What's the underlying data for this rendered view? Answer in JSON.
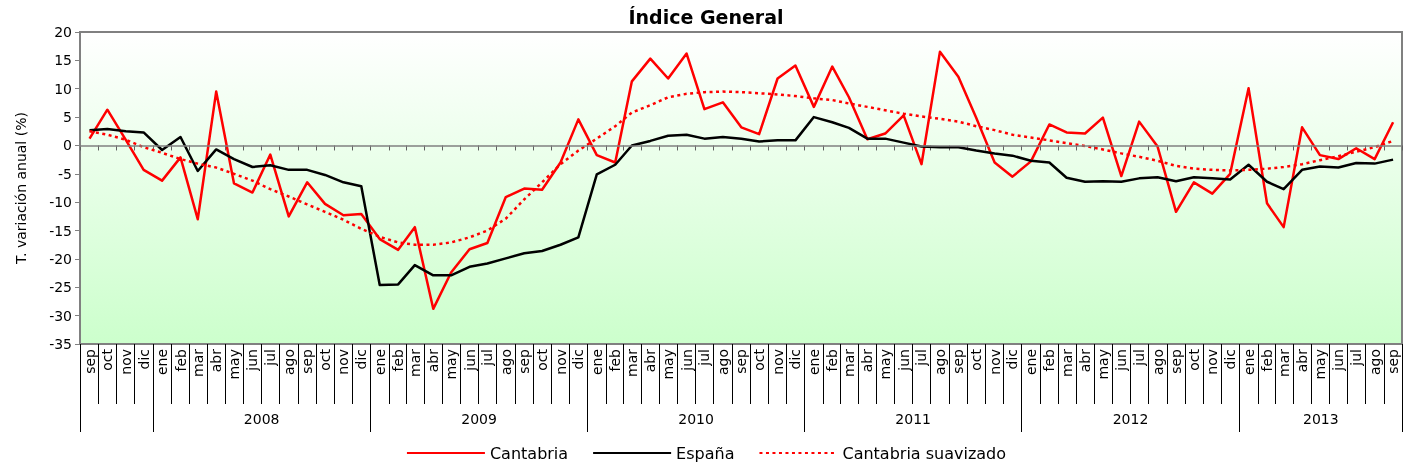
{
  "chart_data": {
    "type": "line",
    "title": "Índice General",
    "ylabel": "T. variación anual (%)",
    "x": [
      "2007-09",
      "2007-10",
      "2007-11",
      "2007-12",
      "2008-01",
      "2008-02",
      "2008-03",
      "2008-04",
      "2008-05",
      "2008-06",
      "2008-07",
      "2008-08",
      "2008-09",
      "2008-10",
      "2008-11",
      "2008-12",
      "2009-01",
      "2009-02",
      "2009-03",
      "2009-04",
      "2009-05",
      "2009-06",
      "2009-07",
      "2009-08",
      "2009-09",
      "2009-10",
      "2009-11",
      "2009-12",
      "2010-01",
      "2010-02",
      "2010-03",
      "2010-04",
      "2010-05",
      "2010-06",
      "2010-07",
      "2010-08",
      "2010-09",
      "2010-10",
      "2010-11",
      "2010-12",
      "2011-01",
      "2011-02",
      "2011-03",
      "2011-04",
      "2011-05",
      "2011-06",
      "2011-07",
      "2011-08",
      "2011-09",
      "2011-10",
      "2011-11",
      "2011-12",
      "2012-01",
      "2012-02",
      "2012-03",
      "2012-04",
      "2012-05",
      "2012-06",
      "2012-07",
      "2012-08",
      "2012-09",
      "2012-10",
      "2012-11",
      "2012-12",
      "2013-01",
      "2013-02",
      "2013-03",
      "2013-04",
      "2013-05",
      "2013-06",
      "2013-07",
      "2013-08",
      "2013-09"
    ],
    "xlim": [
      "2007-08-16",
      "2013-09-16"
    ],
    "xticks": [
      {
        "value": "2007-09",
        "label": "sep"
      },
      {
        "value": "2007-10",
        "label": "oct"
      },
      {
        "value": "2007-11",
        "label": "nov"
      },
      {
        "value": "2007-12",
        "label": "dic"
      },
      {
        "value": "2008-01",
        "label": "ene"
      },
      {
        "value": "2008-02",
        "label": "feb"
      },
      {
        "value": "2008-03",
        "label": "mar"
      },
      {
        "value": "2008-04",
        "label": "abr"
      },
      {
        "value": "2008-05",
        "label": "may"
      },
      {
        "value": "2008-06",
        "label": "jun"
      },
      {
        "value": "2008-07",
        "label": "jul"
      },
      {
        "value": "2008-08",
        "label": "ago"
      },
      {
        "value": "2008-09",
        "label": "sep"
      },
      {
        "value": "2008-10",
        "label": "oct"
      },
      {
        "value": "2008-11",
        "label": "nov"
      },
      {
        "value": "2008-12",
        "label": "dic"
      },
      {
        "value": "2009-01",
        "label": "ene"
      },
      {
        "value": "2009-02",
        "label": "feb"
      },
      {
        "value": "2009-03",
        "label": "mar"
      },
      {
        "value": "2009-04",
        "label": "abr"
      },
      {
        "value": "2009-05",
        "label": "may"
      },
      {
        "value": "2009-06",
        "label": "jun"
      },
      {
        "value": "2009-07",
        "label": "jul"
      },
      {
        "value": "2009-08",
        "label": "ago"
      },
      {
        "value": "2009-09",
        "label": "sep"
      },
      {
        "value": "2009-10",
        "label": "oct"
      },
      {
        "value": "2009-11",
        "label": "nov"
      },
      {
        "value": "2009-12",
        "label": "dic"
      },
      {
        "value": "2010-01",
        "label": "ene"
      },
      {
        "value": "2010-02",
        "label": "feb"
      },
      {
        "value": "2010-03",
        "label": "mar"
      },
      {
        "value": "2010-04",
        "label": "abr"
      },
      {
        "value": "2010-05",
        "label": "may"
      },
      {
        "value": "2010-06",
        "label": "jun"
      },
      {
        "value": "2010-07",
        "label": "jul"
      },
      {
        "value": "2010-08",
        "label": "ago"
      },
      {
        "value": "2010-09",
        "label": "sep"
      },
      {
        "value": "2010-10",
        "label": "oct"
      },
      {
        "value": "2010-11",
        "label": "nov"
      },
      {
        "value": "2010-12",
        "label": "dic"
      },
      {
        "value": "2011-01",
        "label": "ene"
      },
      {
        "value": "2011-02",
        "label": "feb"
      },
      {
        "value": "2011-03",
        "label": "mar"
      },
      {
        "value": "2011-04",
        "label": "abr"
      },
      {
        "value": "2011-05",
        "label": "may"
      },
      {
        "value": "2011-06",
        "label": "jun"
      },
      {
        "value": "2011-07",
        "label": "jul"
      },
      {
        "value": "2011-08",
        "label": "ago"
      },
      {
        "value": "2011-09",
        "label": "sep"
      },
      {
        "value": "2011-10",
        "label": "oct"
      },
      {
        "value": "2011-11",
        "label": "nov"
      },
      {
        "value": "2011-12",
        "label": "dic"
      },
      {
        "value": "2012-01",
        "label": "ene"
      },
      {
        "value": "2012-02",
        "label": "feb"
      },
      {
        "value": "2012-03",
        "label": "mar"
      },
      {
        "value": "2012-04",
        "label": "abr"
      },
      {
        "value": "2012-05",
        "label": "may"
      },
      {
        "value": "2012-06",
        "label": "jun"
      },
      {
        "value": "2012-07",
        "label": "jul"
      },
      {
        "value": "2012-08",
        "label": "ago"
      },
      {
        "value": "2012-09",
        "label": "sep"
      },
      {
        "value": "2012-10",
        "label": "oct"
      },
      {
        "value": "2012-11",
        "label": "nov"
      },
      {
        "value": "2012-12",
        "label": "dic"
      },
      {
        "value": "2013-01",
        "label": "ene"
      },
      {
        "value": "2013-02",
        "label": "feb"
      },
      {
        "value": "2013-03",
        "label": "mar"
      },
      {
        "value": "2013-04",
        "label": "abr"
      },
      {
        "value": "2013-05",
        "label": "may"
      },
      {
        "value": "2013-06",
        "label": "jun"
      },
      {
        "value": "2013-07",
        "label": "jul"
      },
      {
        "value": "2013-08",
        "label": "ago"
      },
      {
        "value": "2013-09",
        "label": "sep"
      }
    ],
    "annotations": [
      "2008",
      "2009",
      "2010",
      "2011",
      "2012",
      "2013"
    ],
    "ylim": [
      -35,
      20
    ],
    "yticks": [
      -35,
      -30,
      -25,
      -20,
      -15,
      -10,
      -5,
      0,
      5,
      10,
      15,
      20
    ],
    "ref_lines": [
      {
        "axis": "y",
        "value": 0,
        "color": "#808080"
      }
    ],
    "grid": false,
    "legend": "bottom",
    "marker": "none",
    "series": [
      {
        "name": "Cantabria",
        "color": "#ff0000",
        "line_style": "solid",
        "values": [
          1.2,
          6.3,
          1.0,
          -4.3,
          -6.2,
          -2.1,
          -13.0,
          9.5,
          -6.7,
          -8.3,
          -1.6,
          -12.5,
          -6.5,
          -10.3,
          -12.3,
          -12.1,
          -16.5,
          -18.4,
          -14.4,
          -28.8,
          -22.4,
          -18.3,
          -17.2,
          -9.1,
          -7.6,
          -7.8,
          -3.0,
          4.6,
          -1.7,
          -3.0,
          11.3,
          15.3,
          11.8,
          16.2,
          6.4,
          7.6,
          3.2,
          2.0,
          11.8,
          14.1,
          6.8,
          13.9,
          8.5,
          1.1,
          2.1,
          5.3,
          -3.3,
          16.5,
          12.1,
          4.9,
          -3.0,
          -5.5,
          -2.8,
          3.7,
          2.3,
          2.1,
          4.9,
          -5.4,
          4.2,
          -0.2,
          -11.7,
          -6.5,
          -8.5,
          -5.0,
          10.1,
          -10.2,
          -14.4,
          3.2,
          -1.7,
          -2.4,
          -0.5,
          -2.4,
          4.1
        ]
      },
      {
        "name": "España",
        "color": "#000000",
        "line_style": "solid",
        "values": [
          2.7,
          2.9,
          2.5,
          2.3,
          -0.8,
          1.5,
          -4.5,
          -0.7,
          -2.4,
          -3.8,
          -3.5,
          -4.3,
          -4.3,
          -5.2,
          -6.5,
          -7.2,
          -24.6,
          -24.5,
          -21.1,
          -22.9,
          -22.9,
          -21.4,
          -20.8,
          -19.9,
          -19.0,
          -18.6,
          -17.5,
          -16.2,
          -5.1,
          -3.4,
          0.0,
          0.8,
          1.7,
          1.9,
          1.2,
          1.5,
          1.2,
          0.7,
          0.9,
          0.9,
          5.0,
          4.1,
          3.1,
          1.2,
          1.2,
          0.5,
          -0.2,
          -0.3,
          -0.3,
          -0.9,
          -1.4,
          -1.8,
          -2.7,
          -3.0,
          -5.7,
          -6.4,
          -6.3,
          -6.4,
          -5.8,
          -5.6,
          -6.3,
          -5.6,
          -5.8,
          -6.0,
          -3.4,
          -6.4,
          -7.7,
          -4.3,
          -3.7,
          -3.9,
          -3.1,
          -3.2,
          -2.5
        ]
      },
      {
        "name": "Cantabria suavizado",
        "color": "#ff0000",
        "line_style": "dotted",
        "values": [
          2.5,
          1.9,
          1.0,
          -0.3,
          -1.3,
          -2.4,
          -3.2,
          -3.9,
          -5.0,
          -6.2,
          -7.7,
          -9.0,
          -10.4,
          -11.7,
          -13.1,
          -14.7,
          -16.1,
          -17.1,
          -17.5,
          -17.5,
          -17.1,
          -16.2,
          -15.0,
          -12.9,
          -9.5,
          -6.5,
          -3.3,
          -0.9,
          1.2,
          3.4,
          5.8,
          7.1,
          8.5,
          9.1,
          9.4,
          9.5,
          9.4,
          9.2,
          9.0,
          8.7,
          8.3,
          8.0,
          7.4,
          6.8,
          6.2,
          5.6,
          5.1,
          4.7,
          4.2,
          3.4,
          2.7,
          1.9,
          1.4,
          0.9,
          0.4,
          -0.1,
          -0.7,
          -1.4,
          -2.0,
          -2.7,
          -3.6,
          -4.1,
          -4.3,
          -4.4,
          -4.3,
          -4.1,
          -3.8,
          -3.3,
          -2.6,
          -1.9,
          -1.1,
          -0.3,
          0.8
        ]
      }
    ]
  }
}
